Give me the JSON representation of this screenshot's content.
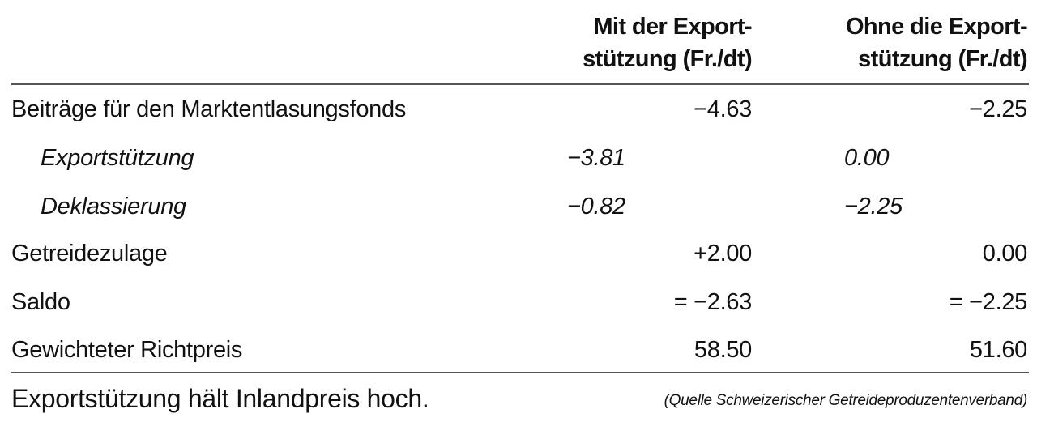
{
  "table": {
    "columns": [
      {
        "line1": "Mit der Export-",
        "line2": "stützung (Fr./dt)"
      },
      {
        "line1": "Ohne die Export-",
        "line2": "stützung (Fr./dt)"
      }
    ],
    "rows": [
      {
        "label": "Beiträge für den Marktentlasungsfonds",
        "italic": false,
        "col1": "−4.63",
        "col2": "−2.25"
      },
      {
        "label": "Exportstützung",
        "italic": true,
        "col1": "−3.81",
        "col2": "0.00"
      },
      {
        "label": "Deklassierung",
        "italic": true,
        "col1": "−0.82",
        "col2": "−2.25"
      },
      {
        "label": "Getreidezulage",
        "italic": false,
        "col1": "+2.00",
        "col2": "0.00"
      },
      {
        "label": "Saldo",
        "italic": false,
        "col1": "= −2.63",
        "col2": "= −2.25"
      },
      {
        "label": "Gewichteter Richtpreis",
        "italic": false,
        "col1": "58.50",
        "col2": "51.60"
      }
    ]
  },
  "caption": "Exportstützung hält Inlandpreis hoch.",
  "source": "(Quelle Schweizerischer Getreideproduzentenverband)"
}
